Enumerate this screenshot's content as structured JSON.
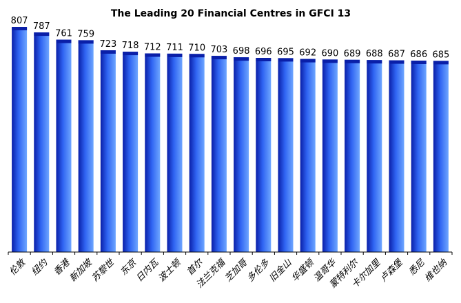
{
  "chart_data": {
    "type": "bar",
    "title": "The Leading 20 Financial Centres in GFCI 13",
    "xlabel": "",
    "ylabel": "",
    "ylim": [
      0,
      807
    ],
    "grid": false,
    "categories": [
      "伦敦",
      "纽约",
      "香港",
      "新加坡",
      "苏黎世",
      "东京",
      "日内瓦",
      "波士顿",
      "首尔",
      "法兰克福",
      "芝加哥",
      "多伦多",
      "旧金山",
      "华盛顿",
      "温哥华",
      "蒙特利尔",
      "卡尔加里",
      "卢森堡",
      "悉尼",
      "维也纳"
    ],
    "values": [
      807,
      787,
      761,
      759,
      723,
      718,
      712,
      711,
      710,
      703,
      698,
      696,
      695,
      692,
      690,
      689,
      688,
      687,
      686,
      685
    ],
    "colors": {
      "bar_dark": "#0a1fa8",
      "bar_mid": "#2f64f2",
      "bar_light": "#6ea6ff",
      "axis": "#000000"
    }
  }
}
